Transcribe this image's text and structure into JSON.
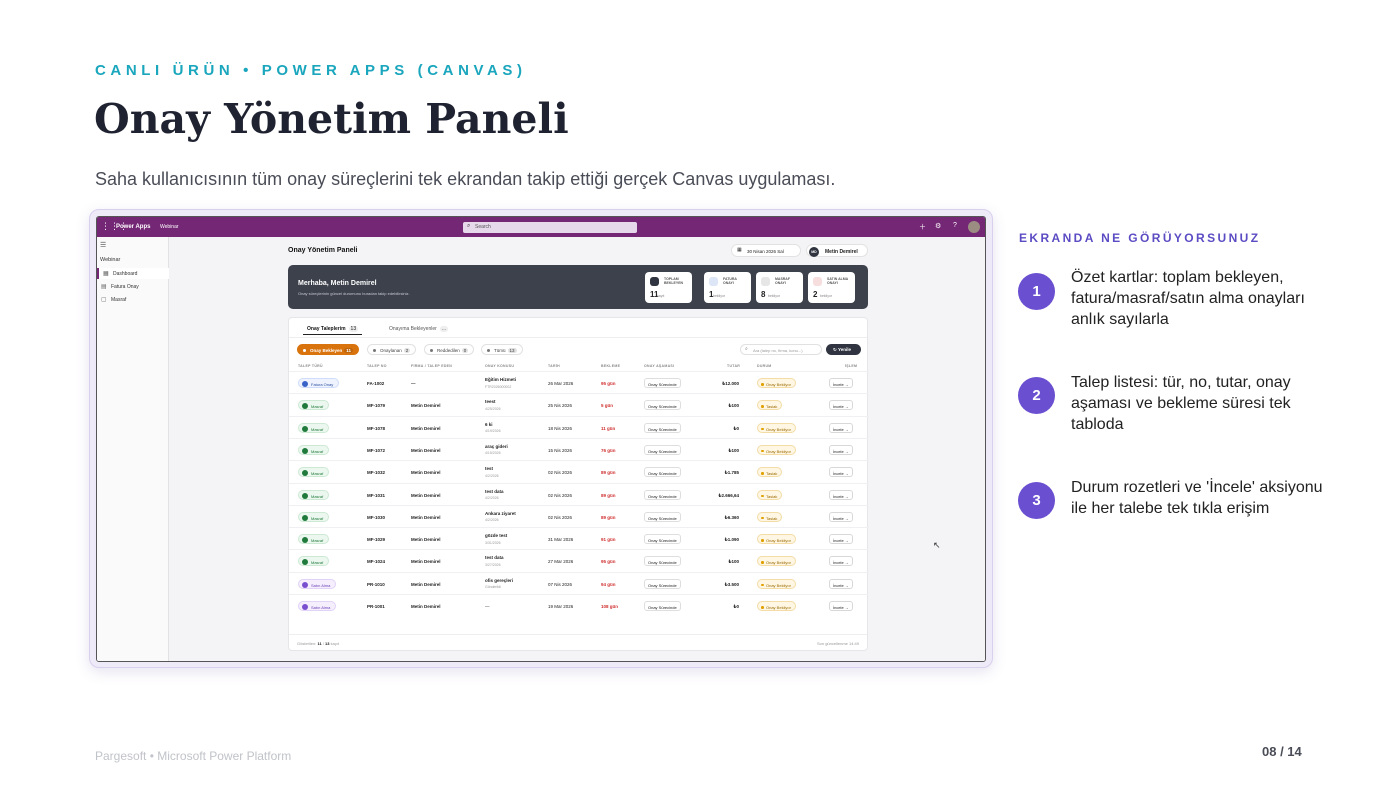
{
  "slide": {
    "kicker": "CANLI ÜRÜN  •  POWER APPS (CANVAS)",
    "title": "Onay Yönetim Paneli",
    "subtitle": "Saha kullanıcısının tüm onay süreçlerini tek ekrandan takip ettiği gerçek Canvas uygulaması.",
    "footer_left": "Pargesoft  •  Microsoft Power Platform",
    "page": "08 / 14"
  },
  "side": {
    "heading": "EKRANDA NE GÖRÜYORSUNUZ",
    "steps": [
      {
        "num": "1",
        "text": "Özet kartlar: toplam bekleyen, fatura/masraf/satın alma onayları anlık sayılarla"
      },
      {
        "num": "2",
        "text": "Talep listesi: tür, no, tutar, onay aşaması ve bekleme süresi tek tabloda"
      },
      {
        "num": "3",
        "text": "Durum rozetleri ve 'İncele' aksiyonu ile her talebe tek tıkla erişim"
      }
    ]
  },
  "powerapps": {
    "app_name": "Power Apps",
    "environment": "Webinar",
    "search_placeholder": "Search",
    "nav": {
      "group": "Webinar",
      "items": [
        {
          "label": "Dashboard",
          "icon": "dashboard-icon"
        },
        {
          "label": "Fatura Onay",
          "icon": "document-icon"
        },
        {
          "label": "Masraf",
          "icon": "receipt-icon"
        }
      ]
    }
  },
  "dashboard": {
    "title": "Onay Yönetim Paneli",
    "date": "30 Nisan 2026 Sal",
    "user_initials": "MD",
    "user_name": "Metin Demirel",
    "greeting": "Merhaba, Metin Demirel",
    "greeting_sub": "Onay süreçlerinin güncel durumunu buradan takip edebilirsiniz.",
    "kpis": [
      {
        "label1": "TOPLAM",
        "label2": "BEKLEYEN",
        "value": "11",
        "unit": "kayıt"
      },
      {
        "label1": "FATURA",
        "label2": "ONAYI",
        "value": "1",
        "unit": "bekliyor"
      },
      {
        "label1": "MASRAF",
        "label2": "ONAYI",
        "value": "8",
        "unit": "bekliyor"
      },
      {
        "label1": "SATIN ALMA",
        "label2": "ONAYI",
        "value": "2",
        "unit": "bekliyor"
      }
    ],
    "tabs": [
      {
        "label": "Onay Taleplerim",
        "count": "13"
      },
      {
        "label": "Onayıma Bekleyenler",
        "count": "..."
      }
    ],
    "filters": [
      {
        "label": "Onay Bekleyen",
        "count": "11"
      },
      {
        "label": "Onaylanan",
        "count": "2"
      },
      {
        "label": "Reddedilen",
        "count": "0"
      },
      {
        "label": "Tümü",
        "count": "13"
      }
    ],
    "search_placeholder": "Ara (talep no, firma, konu...)",
    "refresh_label": "Yenile",
    "columns": [
      "TALEP TÜRÜ",
      "TALEP NO",
      "FİRMA / TALEP EDEN",
      "ONAY KONUSU",
      "TARİH",
      "BEKLEME",
      "ONAY AŞAMASI",
      "TUTAR",
      "DURUM",
      "İŞLEM"
    ],
    "rows": [
      {
        "type": "Fatura Onay",
        "kind": "fatura",
        "no": "FA-1002",
        "firm": "—",
        "subject": "Eğitim Hizmeti",
        "sub": "FTR2026000002",
        "date": "26 Mar 2026",
        "wait": "95 gün",
        "stage": "Onay Sürecinde",
        "amount": "₺12.000",
        "status": "Onay Bekliyor",
        "action": "İncele →"
      },
      {
        "type": "Masraf",
        "kind": "masraf",
        "no": "MF-1079",
        "firm": "Metin Demirel",
        "subject": "teest",
        "sub": "4/25/2026",
        "date": "25 Nis 2026",
        "wait": "5 gün",
        "stage": "Onay Sürecinde",
        "amount": "₺100",
        "status": "Taslak",
        "action": "İncele →"
      },
      {
        "type": "Masraf",
        "kind": "masraf",
        "no": "MF-1078",
        "firm": "Metin Demirel",
        "subject": "6 ki",
        "sub": "4/19/2026",
        "date": "18 Nis 2026",
        "wait": "11 gün",
        "stage": "Onay Sürecinde",
        "amount": "₺0",
        "status": "Onay Bekliyor",
        "action": "İncele →"
      },
      {
        "type": "Masraf",
        "kind": "masraf",
        "no": "MF-1072",
        "firm": "Metin Demirel",
        "subject": "araç gideri",
        "sub": "4/15/2026",
        "date": "15 Nis 2026",
        "wait": "76 gün",
        "stage": "Onay Sürecinde",
        "amount": "₺100",
        "status": "Onay Bekliyor",
        "action": "İncele →"
      },
      {
        "type": "Masraf",
        "kind": "masraf",
        "no": "MF-1032",
        "firm": "Metin Demirel",
        "subject": "test",
        "sub": "4/2/2026",
        "date": "02 Nis 2026",
        "wait": "89 gün",
        "stage": "Onay Sürecinde",
        "amount": "₺1.785",
        "status": "Taslak",
        "action": "İncele →"
      },
      {
        "type": "Masraf",
        "kind": "masraf",
        "no": "MF-1031",
        "firm": "Metin Demirel",
        "subject": "test data",
        "sub": "4/2/2026",
        "date": "02 Nis 2026",
        "wait": "89 gün",
        "stage": "Onay Sürecinde",
        "amount": "₺2.666,64",
        "status": "Taslak",
        "action": "İncele →"
      },
      {
        "type": "Masraf",
        "kind": "masraf",
        "no": "MF-1030",
        "firm": "Metin Demirel",
        "subject": "Ankara ziyaret",
        "sub": "4/2/2026",
        "date": "02 Nis 2026",
        "wait": "89 gün",
        "stage": "Onay Sürecinde",
        "amount": "₺6.360",
        "status": "Taslak",
        "action": "İncele →"
      },
      {
        "type": "Masraf",
        "kind": "masraf",
        "no": "MF-1029",
        "firm": "Metin Demirel",
        "subject": "gözde test",
        "sub": "3/31/2026",
        "date": "31 Mar 2026",
        "wait": "91 gün",
        "stage": "Onay Sürecinde",
        "amount": "₺1.090",
        "status": "Onay Bekliyor",
        "action": "İncele →"
      },
      {
        "type": "Masraf",
        "kind": "masraf",
        "no": "MF-1024",
        "firm": "Metin Demirel",
        "subject": "test data",
        "sub": "3/27/2026",
        "date": "27 Mar 2026",
        "wait": "95 gün",
        "stage": "Onay Sürecinde",
        "amount": "₺100",
        "status": "Onay Bekliyor",
        "action": "İncele →"
      },
      {
        "type": "Satın Alma",
        "kind": "satin",
        "no": "PR-1010",
        "firm": "Metin Demirel",
        "subject": "ofis gereçleri",
        "sub": "Gönderildi",
        "date": "07 Nis 2026",
        "wait": "94 gün",
        "stage": "Onay Sürecinde",
        "amount": "₺3.500",
        "status": "Onay Bekliyor",
        "action": "İncele →"
      },
      {
        "type": "Satın Alma",
        "kind": "satin",
        "no": "PR-1001",
        "firm": "Metin Demirel",
        "subject": "—",
        "sub": "",
        "date": "19 Mar 2026",
        "wait": "108 gün",
        "stage": "Onay Sürecinde",
        "amount": "₺0",
        "status": "Onay Bekliyor",
        "action": "İncele →"
      }
    ],
    "footer_shown_label": "Gösterilen:",
    "footer_shown": "11",
    "footer_total": "13",
    "footer_unit": "kayıt",
    "footer_updated": "Son güncellenme 14:49"
  }
}
